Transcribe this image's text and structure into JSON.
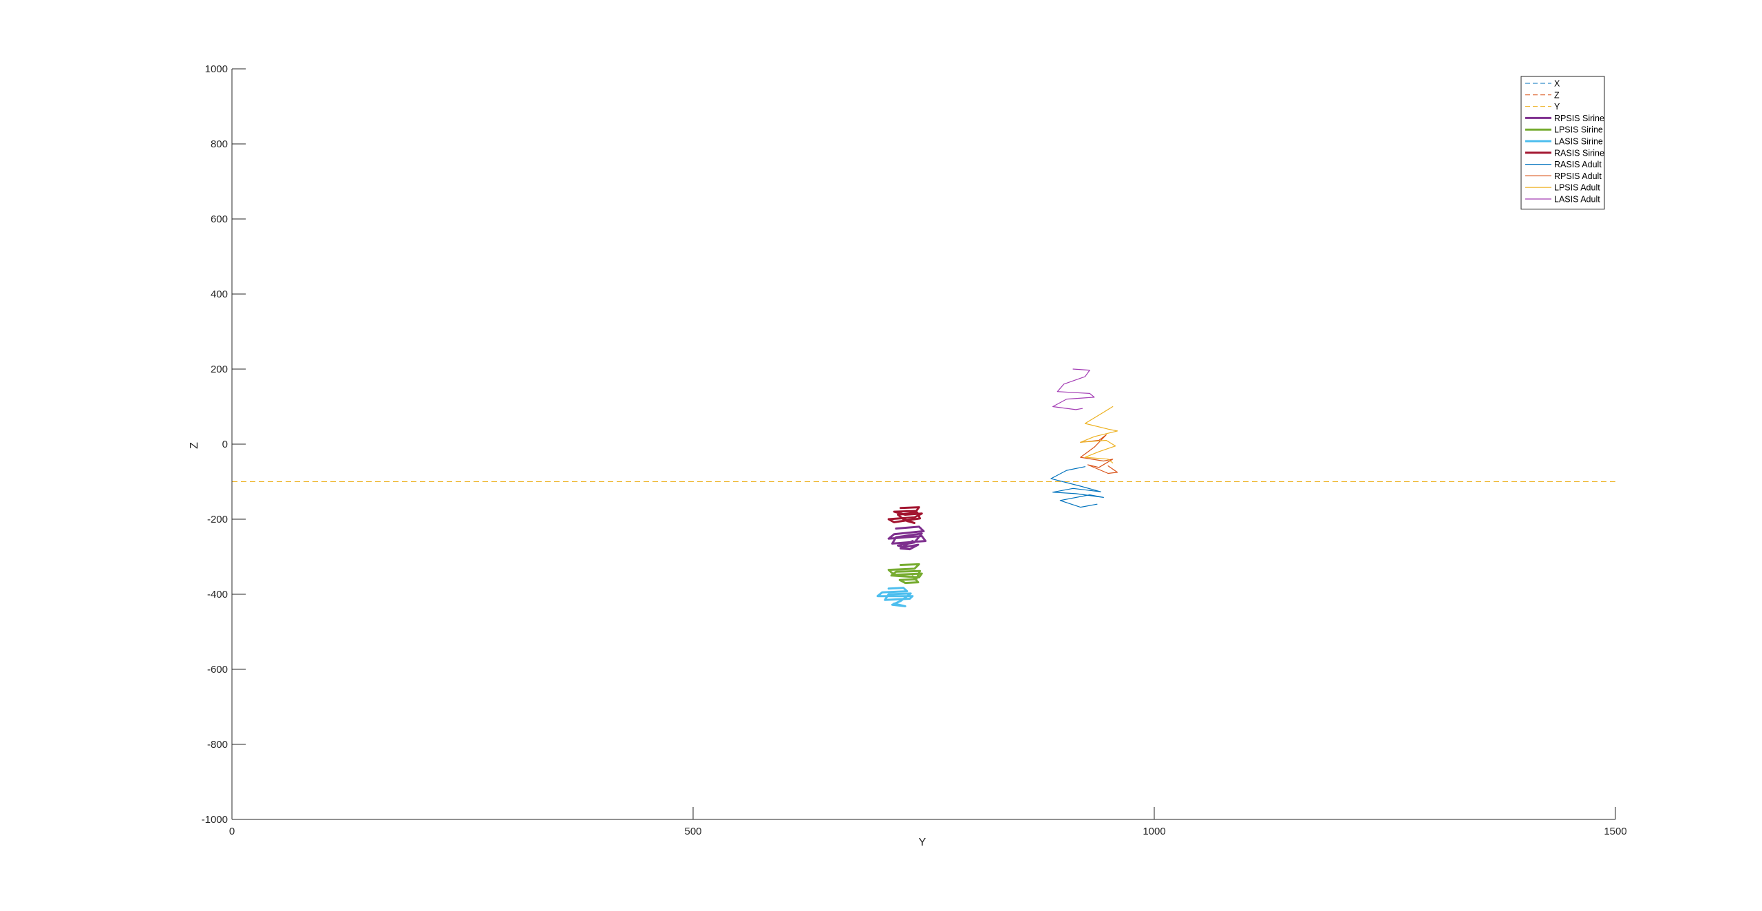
{
  "chart_data": {
    "type": "line",
    "title": "",
    "xlabel": "Y",
    "ylabel": "Z",
    "xlim": [
      0,
      1500
    ],
    "ylim": [
      -1000,
      1000
    ],
    "xticks": [
      0,
      500,
      1000,
      1500
    ],
    "yticks": [
      -1000,
      -800,
      -600,
      -400,
      -200,
      0,
      200,
      400,
      600,
      800,
      1000
    ],
    "grid": false,
    "legend_position": "top-right",
    "series": [
      {
        "name": "X",
        "style": "dashed",
        "color": "#0072BD",
        "width": 1,
        "x": [
          0,
          0
        ],
        "y": [
          -1000,
          1000
        ]
      },
      {
        "name": "Z",
        "style": "dashed",
        "color": "#D95319",
        "width": 1,
        "x": [
          0,
          0
        ],
        "y": [
          -1000,
          1000
        ]
      },
      {
        "name": "Y",
        "style": "dashed",
        "color": "#EDB120",
        "width": 1,
        "x": [
          0,
          1500
        ],
        "y": [
          -100,
          -100
        ]
      },
      {
        "name": "RPSIS Sirine",
        "style": "solid",
        "color": "#7E2F8E",
        "width": 3,
        "x": [
          720,
          745,
          750,
          718,
          712,
          748,
          752,
          716,
          720,
          748,
          740,
          722,
          728,
          744,
          735,
          725,
          738
        ],
        "y": [
          -225,
          -220,
          -232,
          -240,
          -252,
          -245,
          -258,
          -265,
          -248,
          -238,
          -262,
          -270,
          -275,
          -268,
          -280,
          -278,
          -258
        ]
      },
      {
        "name": "LPSIS Sirine",
        "style": "solid",
        "color": "#77AC30",
        "width": 3,
        "x": [
          725,
          745,
          740,
          712,
          718,
          748,
          745,
          715,
          720,
          746,
          742,
          724,
          730,
          744,
          738
        ],
        "y": [
          -322,
          -320,
          -332,
          -335,
          -348,
          -345,
          -355,
          -350,
          -340,
          -338,
          -360,
          -362,
          -370,
          -368,
          -352
        ]
      },
      {
        "name": "LASIS Sirine",
        "style": "solid",
        "color": "#4DBEEE",
        "width": 3,
        "x": [
          712,
          728,
          732,
          705,
          700,
          738,
          735,
          708,
          712,
          736,
          725,
          716,
          730,
          718
        ],
        "y": [
          -385,
          -383,
          -392,
          -395,
          -405,
          -405,
          -412,
          -415,
          -400,
          -398,
          -418,
          -428,
          -432,
          -425
        ]
      },
      {
        "name": "RASIS Sirine",
        "style": "solid",
        "color": "#A2142F",
        "width": 3,
        "x": [
          725,
          745,
          742,
          718,
          730,
          748,
          740,
          712,
          718,
          746,
          743,
          722,
          728,
          740,
          732
        ],
        "y": [
          -170,
          -168,
          -178,
          -180,
          -188,
          -185,
          -195,
          -200,
          -208,
          -198,
          -182,
          -188,
          -200,
          -210,
          -205
        ]
      },
      {
        "name": "RASIS Adult",
        "style": "solid",
        "color": "#0072BD",
        "width": 1.2,
        "x": [
          925,
          905,
          888,
          920,
          942,
          912,
          890,
          915,
          945,
          930,
          898,
          920,
          938
        ],
        "y": [
          -60,
          -70,
          -92,
          -112,
          -127,
          -118,
          -128,
          -132,
          -142,
          -135,
          -150,
          -168,
          -160
        ]
      },
      {
        "name": "RPSIS Adult",
        "style": "solid",
        "color": "#D95319",
        "width": 1.2,
        "x": [
          920,
          940,
          948,
          935,
          920,
          945,
          955,
          940,
          928,
          950,
          960,
          950
        ],
        "y": [
          5,
          10,
          25,
          -8,
          -35,
          -45,
          -40,
          -62,
          -55,
          -78,
          -75,
          -58
        ]
      },
      {
        "name": "LPSIS Adult",
        "style": "solid",
        "color": "#EDB120",
        "width": 1.2,
        "x": [
          955,
          945,
          925,
          950,
          960,
          935,
          920,
          948,
          958,
          940,
          925,
          950,
          955
        ],
        "y": [
          100,
          85,
          55,
          40,
          35,
          20,
          5,
          10,
          -5,
          -20,
          -35,
          -40,
          -50
        ]
      },
      {
        "name": "LASIS Adult",
        "style": "solid",
        "color": "#A43EB5",
        "width": 1.2,
        "x": [
          912,
          930,
          925,
          902,
          895,
          930,
          935,
          905,
          890,
          915,
          922
        ],
        "y": [
          200,
          197,
          180,
          160,
          140,
          135,
          125,
          120,
          100,
          92,
          95
        ]
      }
    ]
  }
}
